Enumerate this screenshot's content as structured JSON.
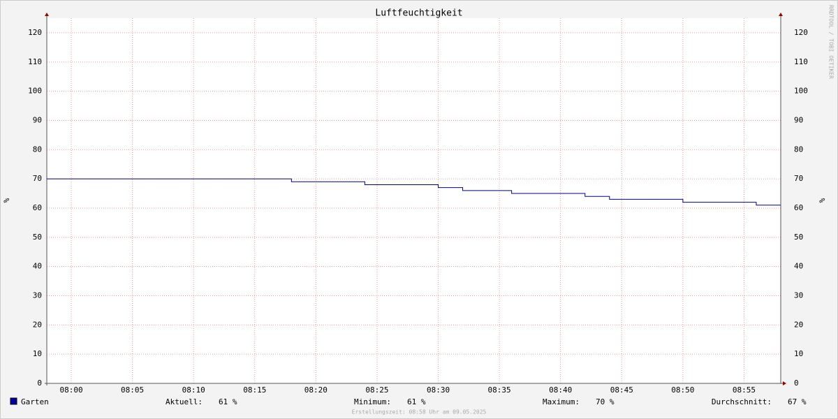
{
  "chart_data": {
    "type": "step",
    "title": "Luftfeuchtigkeit",
    "ylabel": "%",
    "x": [
      "07:58",
      "08:18",
      "08:24",
      "08:30",
      "08:32",
      "08:36",
      "08:42",
      "08:44",
      "08:50",
      "08:56"
    ],
    "series": [
      {
        "name": "Garten",
        "color": "#000080",
        "values": [
          70,
          69,
          68,
          67,
          66,
          65,
          64,
          63,
          62,
          61
        ]
      }
    ],
    "xlim": [
      "07:58",
      "08:58"
    ],
    "xticks": [
      "08:00",
      "08:05",
      "08:10",
      "08:15",
      "08:20",
      "08:25",
      "08:30",
      "08:35",
      "08:40",
      "08:45",
      "08:50",
      "08:55"
    ],
    "ylim": [
      0,
      125
    ],
    "yticks": [
      0,
      10,
      20,
      30,
      40,
      50,
      60,
      70,
      80,
      90,
      100,
      110,
      120
    ],
    "grid": true,
    "stats": [
      {
        "label": "Aktuell:",
        "value": "61 %"
      },
      {
        "label": "Minimum:",
        "value": "61 %"
      },
      {
        "label": "Maximum:",
        "value": "70 %"
      },
      {
        "label": "Durchschnitt:",
        "value": "67 %"
      }
    ],
    "watermark": "RRDTOOL / TOBI OETIKER",
    "footer": "Erstellungszeit: 08:58 Uhr am 09.05.2025"
  }
}
